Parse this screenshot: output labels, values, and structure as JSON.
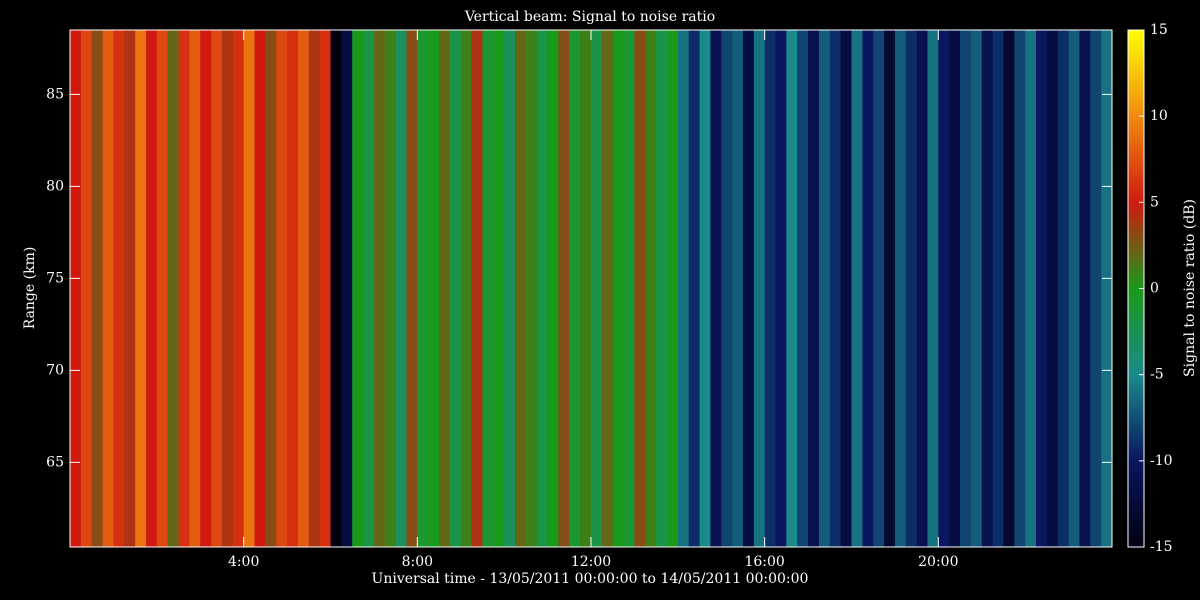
{
  "chart_data": {
    "type": "heatmap",
    "title": "Vertical beam: Signal to noise ratio",
    "xlabel": "Universal time - 13/05/2011 00:00:00 to 14/05/2011 00:00:00",
    "ylabel": "Range (km)",
    "colorbar_label": "Signal to noise ratio (dB)",
    "title_color": "#aab4ff",
    "xlim": [
      0,
      24
    ],
    "xticks": [
      {
        "value": 4,
        "label": "4:00"
      },
      {
        "value": 8,
        "label": "8:00"
      },
      {
        "value": 12,
        "label": "12:00"
      },
      {
        "value": 16,
        "label": "16:00"
      },
      {
        "value": 20,
        "label": "20:00"
      }
    ],
    "ylim": [
      60.4,
      88.5
    ],
    "yticks": [
      65,
      70,
      75,
      80,
      85
    ],
    "clim": [
      -15,
      15
    ],
    "cticks": [
      -15,
      -10,
      -5,
      0,
      5,
      10,
      15
    ],
    "colormap": [
      "#000010",
      "#0a1660",
      "#1a8a8a",
      "#1a9a1a",
      "#d01a10",
      "#f08a10",
      "#ffff00"
    ],
    "x_edges": [
      0,
      0.25,
      0.5,
      0.75,
      1,
      1.25,
      1.5,
      1.75,
      2,
      2.25,
      2.5,
      2.75,
      3,
      3.25,
      3.5,
      3.75,
      4,
      4.25,
      4.5,
      4.75,
      5,
      5.25,
      5.5,
      5.75,
      6,
      6.25,
      6.5,
      6.75,
      7,
      7.25,
      7.5,
      7.75,
      8,
      8.25,
      8.5,
      8.75,
      9,
      9.25,
      9.5,
      9.75,
      10,
      10.25,
      10.5,
      10.75,
      11,
      11.25,
      11.5,
      11.75,
      12,
      12.25,
      12.5,
      12.75,
      13,
      13.25,
      13.5,
      13.75,
      14,
      14.25,
      14.5,
      14.75,
      15,
      15.25,
      15.5,
      15.75,
      16,
      16.25,
      16.5,
      16.75,
      17,
      17.25,
      17.5,
      17.75,
      18,
      18.25,
      18.5,
      18.75,
      19,
      19.25,
      19.5,
      19.75,
      20,
      20.25,
      20.5,
      20.75,
      21,
      21.25,
      21.5,
      21.75,
      22,
      22.25,
      22.5,
      22.75,
      23,
      23.25,
      23.5,
      23.75,
      24
    ],
    "values": [
      5,
      7,
      3,
      8,
      6,
      4,
      9,
      5,
      7,
      2,
      6,
      8,
      5,
      7,
      4,
      6,
      9,
      5,
      3,
      7,
      6,
      8,
      4,
      6,
      -15,
      -12,
      0,
      -2,
      2,
      1,
      -3,
      3,
      -1,
      0,
      2,
      -2,
      1,
      4,
      -1,
      0,
      -3,
      2,
      1,
      -2,
      0,
      3,
      -1,
      1,
      -2,
      2,
      0,
      -1,
      3,
      1,
      -2,
      0,
      -6,
      -9,
      -5,
      -11,
      -8,
      -7,
      -12,
      -6,
      -9,
      -10,
      -5,
      -8,
      -11,
      -7,
      -9,
      -12,
      -6,
      -10,
      -8,
      -13,
      -7,
      -9,
      -11,
      -6,
      -10,
      -12,
      -8,
      -7,
      -11,
      -9,
      -13,
      -8,
      -6,
      -10,
      -12,
      -9,
      -7,
      -11,
      -8,
      -6
    ]
  }
}
